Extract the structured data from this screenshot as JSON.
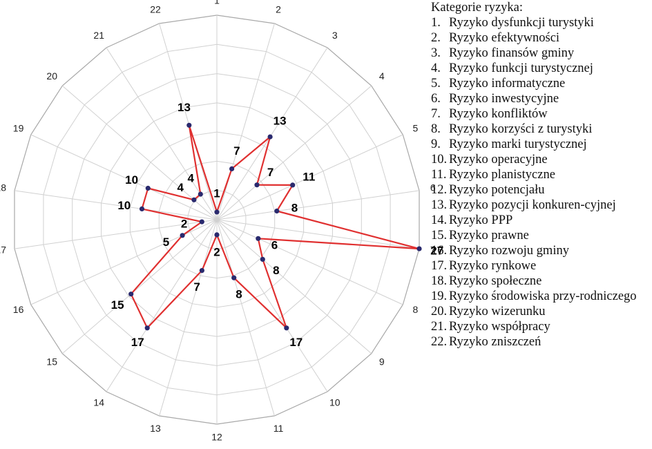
{
  "chart_data": {
    "type": "radar",
    "axes": [
      "1",
      "2",
      "3",
      "4",
      "5",
      "6",
      "7",
      "8",
      "9",
      "10",
      "11",
      "12",
      "13",
      "14",
      "15",
      "16",
      "17",
      "18",
      "19",
      "20",
      "21",
      "22"
    ],
    "values": [
      1,
      7,
      13,
      7,
      11,
      8,
      27,
      6,
      8,
      17,
      8,
      2,
      7,
      17,
      15,
      5,
      2,
      10,
      10,
      4,
      4,
      13
    ],
    "rmax": 27,
    "rings": 7,
    "grid": true,
    "series_color": "#e03030",
    "marker_color": "#2a2a6e",
    "grid_color": "#d0d0d0"
  },
  "legend": {
    "title": "Kategorie ryzyka:",
    "items": [
      {
        "num": "1.",
        "text": "Ryzyko dysfunkcji turystyki"
      },
      {
        "num": "2.",
        "text": "Ryzyko efektywności"
      },
      {
        "num": "3.",
        "text": "Ryzyko finansów gminy"
      },
      {
        "num": "4.",
        "text": "Ryzyko funkcji turystycznej"
      },
      {
        "num": "5.",
        "text": "Ryzyko informatyczne"
      },
      {
        "num": "6.",
        "text": "Ryzyko inwestycyjne"
      },
      {
        "num": "7.",
        "text": "Ryzyko konfliktów"
      },
      {
        "num": "8.",
        "text": "Ryzyko korzyści z turystyki"
      },
      {
        "num": "9.",
        "text": "Ryzyko marki turystycznej"
      },
      {
        "num": "10.",
        "text": "Ryzyko operacyjne"
      },
      {
        "num": "11.",
        "text": "Ryzyko planistyczne"
      },
      {
        "num": "12.",
        "text": "Ryzyko potencjału"
      },
      {
        "num": "13.",
        "text": "Ryzyko pozycji konkuren-cyjnej"
      },
      {
        "num": "14.",
        "text": "Ryzyko PPP"
      },
      {
        "num": "15.",
        "text": "Ryzyko prawne"
      },
      {
        "num": "16.",
        "text": "Ryzyko rozwoju gminy"
      },
      {
        "num": "17.",
        "text": "Ryzyko rynkowe"
      },
      {
        "num": "18.",
        "text": "Ryzyko społeczne"
      },
      {
        "num": "19.",
        "text": "Ryzyko środowiska przy-rodniczego"
      },
      {
        "num": "20.",
        "text": "Ryzyko wizerunku"
      },
      {
        "num": "21.",
        "text": "Ryzyko współpracy"
      },
      {
        "num": "22.",
        "text": "Ryzyko zniszczeń"
      }
    ]
  }
}
